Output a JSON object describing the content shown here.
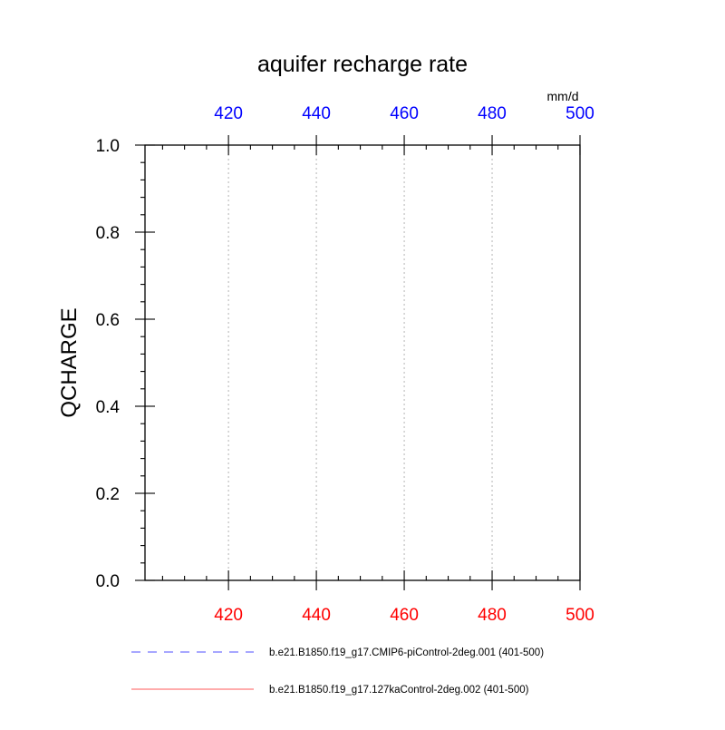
{
  "chart_data": {
    "type": "line",
    "title": "aquifer recharge rate",
    "units": "mm/d",
    "ylabel": "QCHARGE",
    "xlim": [
      401,
      500
    ],
    "ylim": [
      0,
      1
    ],
    "x_ticks": [
      420,
      440,
      460,
      480,
      500
    ],
    "y_ticks": [
      0.0,
      0.2,
      0.4,
      0.6,
      0.8,
      1.0
    ],
    "y_tick_labels": [
      "0.0",
      "0.2",
      "0.4",
      "0.6",
      "0.8",
      "1.0"
    ],
    "grid": "vertical dotted",
    "series": [
      {
        "name": "b.e21.B1850.f19_g17.CMIP6-piControl-2deg.001 (401-500)",
        "color": "#4f4fff",
        "dash": "dashed",
        "axis": "top",
        "axis_color": "#0000ff",
        "x": [],
        "y": []
      },
      {
        "name": "b.e21.B1850.f19_g17.127kaControl-2deg.002 (401-500)",
        "color": "#ff5a5a",
        "dash": "solid",
        "axis": "bottom",
        "axis_color": "#ff0000",
        "x": [],
        "y": []
      }
    ]
  }
}
